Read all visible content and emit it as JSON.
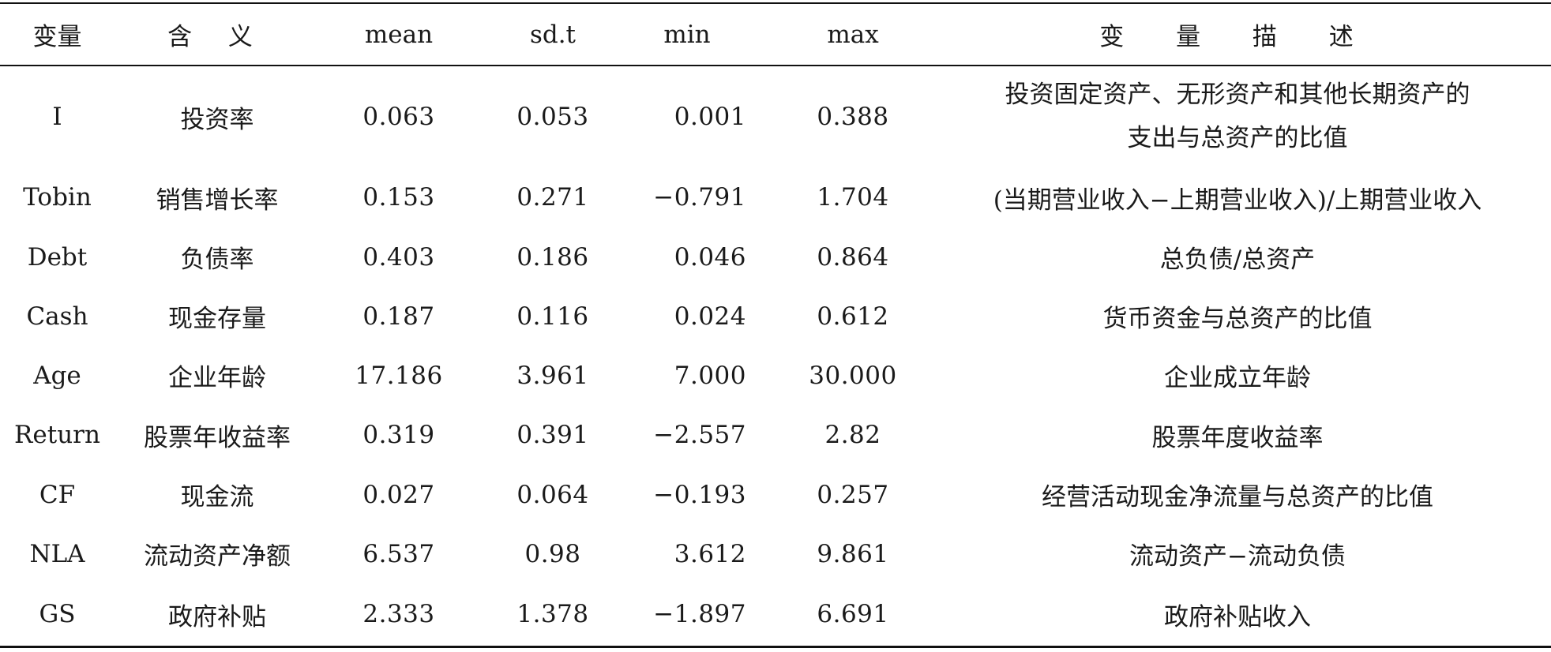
{
  "header": {
    "var": "变量",
    "meaning": "含 义",
    "mean": "mean",
    "sd": "sd.t",
    "min": "min",
    "max": "max",
    "desc": "变 量 描 述"
  },
  "rows": [
    {
      "var": "I",
      "meaning": "投资率",
      "mean": "0.063",
      "sd": "0.053",
      "min": "0.001",
      "max": "0.388",
      "desc_line1": "投资固定资产、无形资产和其他长期资产的",
      "desc_line2": "支出与总资产的比值"
    },
    {
      "var": "Tobin",
      "meaning": "销售增长率",
      "mean": "0.153",
      "sd": "0.271",
      "min": "−0.791",
      "max": "1.704",
      "desc": "(当期营业收入−上期营业收入)/上期营业收入"
    },
    {
      "var": "Debt",
      "meaning": "负债率",
      "mean": "0.403",
      "sd": "0.186",
      "min": "0.046",
      "max": "0.864",
      "desc": "总负债/总资产"
    },
    {
      "var": "Cash",
      "meaning": "现金存量",
      "mean": "0.187",
      "sd": "0.116",
      "min": "0.024",
      "max": "0.612",
      "desc": "货币资金与总资产的比值"
    },
    {
      "var": "Age",
      "meaning": "企业年龄",
      "mean": "17.186",
      "sd": "3.961",
      "min": "7.000",
      "max": "30.000",
      "desc": "企业成立年龄"
    },
    {
      "var": "Return",
      "meaning": "股票年收益率",
      "mean": "0.319",
      "sd": "0.391",
      "min": "−2.557",
      "max": "2.82",
      "desc": "股票年度收益率"
    },
    {
      "var": "CF",
      "meaning": "现金流",
      "mean": "0.027",
      "sd": "0.064",
      "min": "−0.193",
      "max": "0.257",
      "desc": "经营活动现金净流量与总资产的比值"
    },
    {
      "var": "NLA",
      "meaning": "流动资产净额",
      "mean": "6.537",
      "sd": "0.98",
      "min": "3.612",
      "max": "9.861",
      "desc": "流动资产−流动负债"
    },
    {
      "var": "GS",
      "meaning": "政府补贴",
      "mean": "2.333",
      "sd": "1.378",
      "min": "−1.897",
      "max": "6.691",
      "desc": "政府补贴收入"
    }
  ]
}
